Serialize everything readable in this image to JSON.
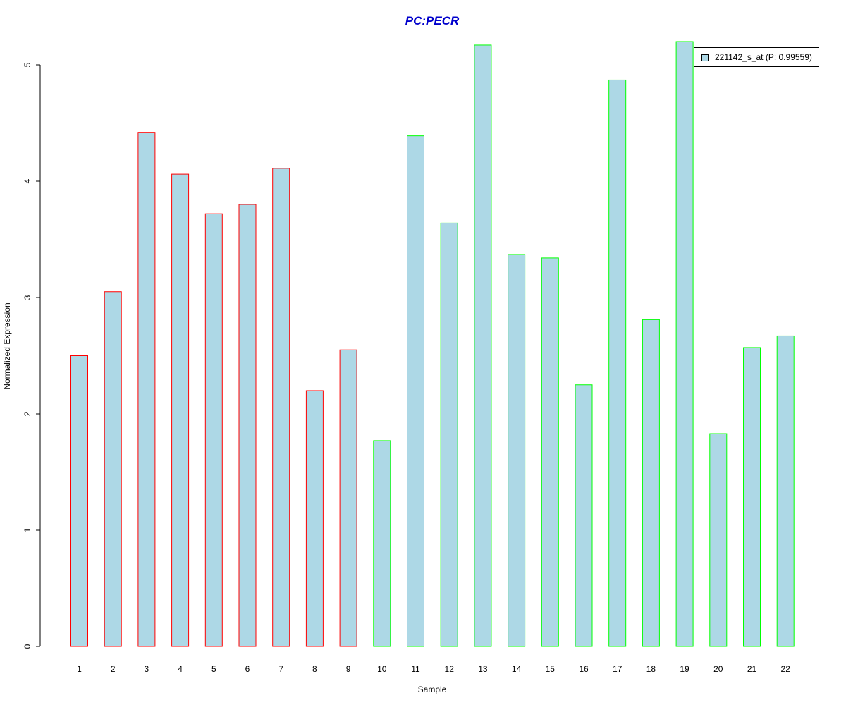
{
  "chart_data": {
    "type": "bar",
    "title": "PC:PECR",
    "xlabel": "Sample",
    "ylabel": "Normalized Expression",
    "categories": [
      "1",
      "2",
      "3",
      "4",
      "5",
      "6",
      "7",
      "8",
      "9",
      "10",
      "11",
      "12",
      "13",
      "14",
      "15",
      "16",
      "17",
      "18",
      "19",
      "20",
      "21",
      "22"
    ],
    "series": [
      {
        "name": "221142_s_at (P: 0.99559)",
        "values": [
          2.5,
          3.05,
          4.42,
          4.06,
          3.72,
          3.8,
          4.11,
          2.2,
          2.55,
          1.77,
          4.39,
          3.64,
          5.17,
          3.37,
          3.34,
          2.25,
          4.87,
          2.81,
          5.2,
          1.83,
          2.57,
          2.67
        ]
      }
    ],
    "groups": [
      {
        "samples": [
          "1",
          "2",
          "3",
          "4",
          "5",
          "6",
          "7",
          "8",
          "9"
        ],
        "border_color": "#ff0000"
      },
      {
        "samples": [
          "10",
          "11",
          "12",
          "13",
          "14",
          "15",
          "16",
          "17",
          "18",
          "19",
          "20",
          "21",
          "22"
        ],
        "border_color": "#00ff00"
      }
    ],
    "ylim": [
      0,
      5.2
    ],
    "yticks": [
      0,
      1,
      2,
      3,
      4,
      5
    ],
    "grid": false,
    "legend_position": "top-right",
    "colors": {
      "fill": "#add8e6",
      "title": "#0000cc",
      "axis": "#000000"
    }
  }
}
